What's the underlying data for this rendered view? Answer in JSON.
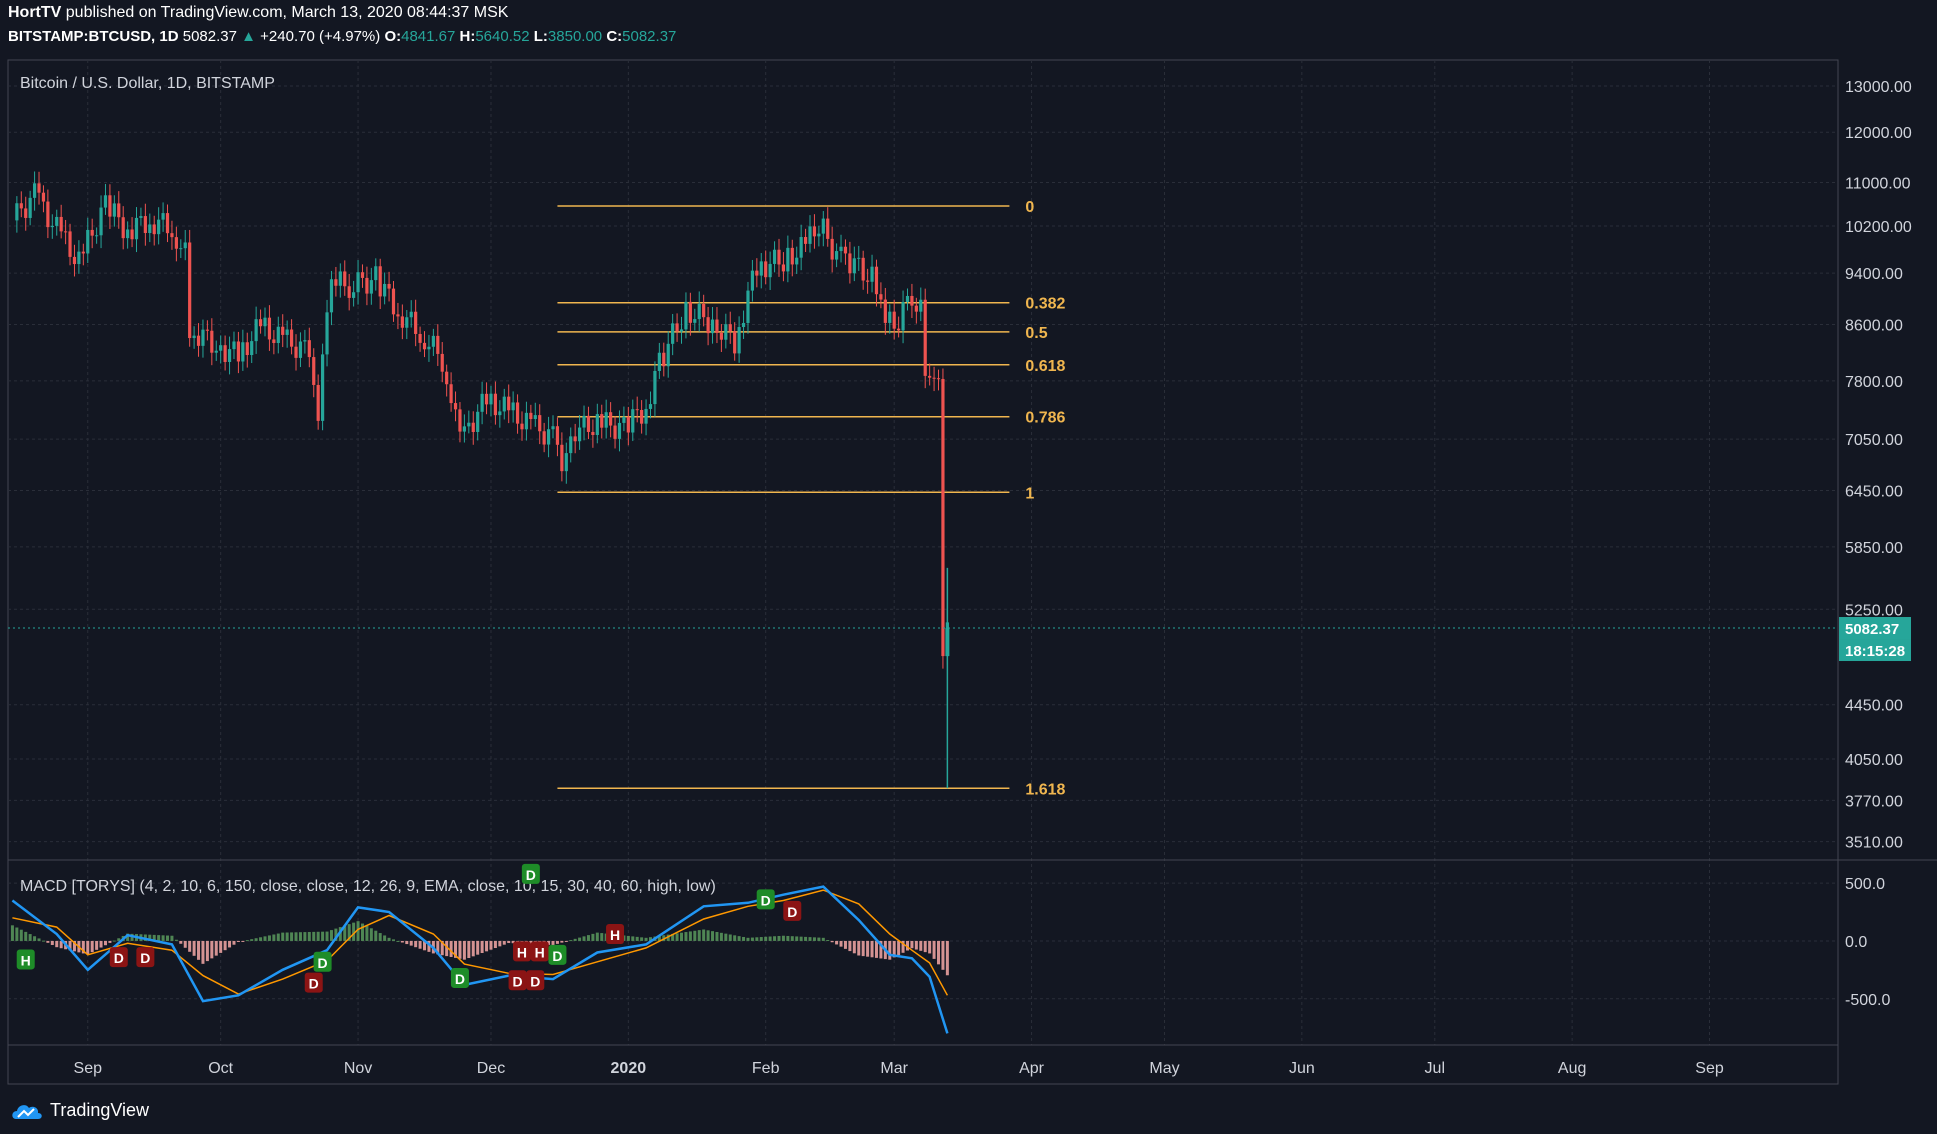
{
  "header": {
    "author": "HortTV",
    "published_text": "published on TradingView.com, March 13, 2020 08:44:37 MSK",
    "symbol": "BITSTAMP:BTCUSD, 1D",
    "last": "5082.37",
    "up_arrow": "▲",
    "change": "+240.70 (+4.97%)",
    "o_label": "O:",
    "o": "4841.67",
    "h_label": "H:",
    "h": "5640.52",
    "l_label": "L:",
    "l": "3850.00",
    "c_label": "C:",
    "c": "5082.37"
  },
  "footer": {
    "brand": "TradingView"
  },
  "colors": {
    "up": "#26a69a",
    "down": "#ef5350",
    "fib": "#f0b64f",
    "macd": "#2196f3",
    "signal": "#ff9800"
  },
  "chart_data": {
    "type": "candlestick",
    "title": "Bitcoin / U.S. Dollar, 1D, BITSTAMP",
    "y_scale": "log",
    "ylim": [
      3400,
      13600
    ],
    "y_ticks": [
      "13000.00",
      "12000.00",
      "11000.00",
      "10200.00",
      "9400.00",
      "8600.00",
      "7800.00",
      "7050.00",
      "6450.00",
      "5850.00",
      "5250.00",
      "4450.00",
      "4050.00",
      "3770.00",
      "3510.00"
    ],
    "x_ticks": [
      "Sep",
      "Oct",
      "Nov",
      "Dec",
      "2020",
      "Feb",
      "Mar",
      "Apr",
      "May",
      "Jun",
      "Jul",
      "Aug",
      "Sep"
    ],
    "last_price_label": "5082.37",
    "countdown_label": "18:15:28",
    "fib_levels": [
      {
        "label": "0",
        "price": 10560
      },
      {
        "label": "0.382",
        "price": 8930
      },
      {
        "label": "0.5",
        "price": 8490
      },
      {
        "label": "0.618",
        "price": 8020
      },
      {
        "label": "0.786",
        "price": 7330
      },
      {
        "label": "1",
        "price": 6430
      },
      {
        "label": "1.618",
        "price": 3850
      }
    ],
    "price_series": [
      {
        "date": "2019-08-15",
        "close": 10300
      },
      {
        "date": "2019-08-20",
        "close": 10760
      },
      {
        "date": "2019-08-25",
        "close": 10140
      },
      {
        "date": "2019-08-30",
        "close": 9580
      },
      {
        "date": "2019-09-05",
        "close": 10580
      },
      {
        "date": "2019-09-10",
        "close": 10120
      },
      {
        "date": "2019-09-15",
        "close": 10310
      },
      {
        "date": "2019-09-20",
        "close": 10170
      },
      {
        "date": "2019-09-23",
        "close": 9700
      },
      {
        "date": "2019-09-24",
        "close": 8530
      },
      {
        "date": "2019-09-30",
        "close": 8300
      },
      {
        "date": "2019-10-05",
        "close": 8150
      },
      {
        "date": "2019-10-10",
        "close": 8580
      },
      {
        "date": "2019-10-15",
        "close": 8370
      },
      {
        "date": "2019-10-20",
        "close": 8230
      },
      {
        "date": "2019-10-23",
        "close": 7440
      },
      {
        "date": "2019-10-25",
        "close": 8660
      },
      {
        "date": "2019-10-26",
        "close": 9250
      },
      {
        "date": "2019-10-30",
        "close": 9200
      },
      {
        "date": "2019-11-05",
        "close": 9310
      },
      {
        "date": "2019-11-10",
        "close": 8810
      },
      {
        "date": "2019-11-15",
        "close": 8480
      },
      {
        "date": "2019-11-20",
        "close": 8100
      },
      {
        "date": "2019-11-22",
        "close": 7620
      },
      {
        "date": "2019-11-25",
        "close": 7130
      },
      {
        "date": "2019-11-30",
        "close": 7550
      },
      {
        "date": "2019-12-05",
        "close": 7400
      },
      {
        "date": "2019-12-10",
        "close": 7220
      },
      {
        "date": "2019-12-15",
        "close": 7080
      },
      {
        "date": "2019-12-17",
        "close": 6620
      },
      {
        "date": "2019-12-20",
        "close": 7150
      },
      {
        "date": "2019-12-25",
        "close": 7250
      },
      {
        "date": "2019-12-31",
        "close": 7190
      },
      {
        "date": "2020-01-05",
        "close": 7450
      },
      {
        "date": "2020-01-08",
        "close": 8050
      },
      {
        "date": "2020-01-14",
        "close": 8820
      },
      {
        "date": "2020-01-20",
        "close": 8630
      },
      {
        "date": "2020-01-25",
        "close": 8350
      },
      {
        "date": "2020-01-30",
        "close": 9500
      },
      {
        "date": "2020-02-05",
        "close": 9620
      },
      {
        "date": "2020-02-10",
        "close": 9850
      },
      {
        "date": "2020-02-13",
        "close": 10250
      },
      {
        "date": "2020-02-17",
        "close": 9700
      },
      {
        "date": "2020-02-20",
        "close": 9600
      },
      {
        "date": "2020-02-25",
        "close": 9320
      },
      {
        "date": "2020-02-27",
        "close": 8790
      },
      {
        "date": "2020-03-01",
        "close": 8520
      },
      {
        "date": "2020-03-05",
        "close": 9070
      },
      {
        "date": "2020-03-07",
        "close": 8900
      },
      {
        "date": "2020-03-08",
        "close": 8040
      },
      {
        "date": "2020-03-10",
        "close": 7920
      },
      {
        "date": "2020-03-11",
        "close": 7900
      },
      {
        "date": "2020-03-12",
        "close": 4840
      },
      {
        "date": "2020-03-13",
        "close": 5082
      }
    ],
    "macd": {
      "label": "MACD [TORYS] (4, 2, 10, 6, 150, close, close, 12, 26, 9, EMA, close, 10, 15, 30, 40, 60, high, low)",
      "y_ticks": [
        "500.0",
        "0.0",
        "-500.0"
      ],
      "ylim": [
        -900,
        700
      ],
      "macd_line": [
        {
          "date": "2019-08-15",
          "value": 350
        },
        {
          "date": "2019-08-25",
          "value": 60
        },
        {
          "date": "2019-09-01",
          "value": -250
        },
        {
          "date": "2019-09-10",
          "value": 50
        },
        {
          "date": "2019-09-20",
          "value": -30
        },
        {
          "date": "2019-09-27",
          "value": -520
        },
        {
          "date": "2019-10-05",
          "value": -470
        },
        {
          "date": "2019-10-15",
          "value": -250
        },
        {
          "date": "2019-10-25",
          "value": -80
        },
        {
          "date": "2019-11-01",
          "value": 290
        },
        {
          "date": "2019-11-08",
          "value": 250
        },
        {
          "date": "2019-11-18",
          "value": -60
        },
        {
          "date": "2019-11-25",
          "value": -380
        },
        {
          "date": "2019-12-05",
          "value": -300
        },
        {
          "date": "2019-12-15",
          "value": -330
        },
        {
          "date": "2019-12-25",
          "value": -100
        },
        {
          "date": "2020-01-05",
          "value": -30
        },
        {
          "date": "2020-01-18",
          "value": 300
        },
        {
          "date": "2020-01-28",
          "value": 330
        },
        {
          "date": "2020-02-05",
          "value": 400
        },
        {
          "date": "2020-02-14",
          "value": 470
        },
        {
          "date": "2020-02-22",
          "value": 180
        },
        {
          "date": "2020-02-29",
          "value": -120
        },
        {
          "date": "2020-03-05",
          "value": -150
        },
        {
          "date": "2020-03-09",
          "value": -310
        },
        {
          "date": "2020-03-13",
          "value": -800
        }
      ],
      "signal_line": [
        {
          "date": "2019-08-15",
          "value": 200
        },
        {
          "date": "2019-08-25",
          "value": 120
        },
        {
          "date": "2019-09-01",
          "value": -120
        },
        {
          "date": "2019-09-10",
          "value": -20
        },
        {
          "date": "2019-09-20",
          "value": -80
        },
        {
          "date": "2019-09-27",
          "value": -300
        },
        {
          "date": "2019-10-05",
          "value": -460
        },
        {
          "date": "2019-10-15",
          "value": -330
        },
        {
          "date": "2019-10-25",
          "value": -170
        },
        {
          "date": "2019-11-01",
          "value": 100
        },
        {
          "date": "2019-11-08",
          "value": 220
        },
        {
          "date": "2019-11-18",
          "value": 60
        },
        {
          "date": "2019-11-25",
          "value": -200
        },
        {
          "date": "2019-12-05",
          "value": -280
        },
        {
          "date": "2019-12-15",
          "value": -290
        },
        {
          "date": "2019-12-25",
          "value": -180
        },
        {
          "date": "2020-01-05",
          "value": -60
        },
        {
          "date": "2020-01-18",
          "value": 190
        },
        {
          "date": "2020-01-28",
          "value": 300
        },
        {
          "date": "2020-02-05",
          "value": 350
        },
        {
          "date": "2020-02-14",
          "value": 440
        },
        {
          "date": "2020-02-22",
          "value": 320
        },
        {
          "date": "2020-02-29",
          "value": 60
        },
        {
          "date": "2020-03-05",
          "value": -80
        },
        {
          "date": "2020-03-09",
          "value": -190
        },
        {
          "date": "2020-03-13",
          "value": -470
        }
      ],
      "signals": [
        {
          "label": "H",
          "date": "2019-08-18",
          "value": -160,
          "type": "buy"
        },
        {
          "label": "D",
          "date": "2019-09-08",
          "value": -140,
          "type": "sell"
        },
        {
          "label": "D",
          "date": "2019-09-14",
          "value": -140,
          "type": "sell"
        },
        {
          "label": "D",
          "date": "2019-10-22",
          "value": -360,
          "type": "sell"
        },
        {
          "label": "D",
          "date": "2019-10-24",
          "value": -180,
          "type": "buy"
        },
        {
          "label": "D",
          "date": "2019-11-24",
          "value": -320,
          "type": "buy"
        },
        {
          "label": "D",
          "date": "2019-12-07",
          "value": -340,
          "type": "sell"
        },
        {
          "label": "D",
          "date": "2019-12-11",
          "value": -340,
          "type": "sell"
        },
        {
          "label": "H",
          "date": "2019-12-08",
          "value": -90,
          "type": "sell"
        },
        {
          "label": "H",
          "date": "2019-12-12",
          "value": -90,
          "type": "sell"
        },
        {
          "label": "D",
          "date": "2019-12-16",
          "value": -120,
          "type": "buy"
        },
        {
          "label": "D",
          "date": "2019-12-10",
          "value": 580,
          "type": "buy"
        },
        {
          "label": "H",
          "date": "2019-12-29",
          "value": 60,
          "type": "sell"
        },
        {
          "label": "D",
          "date": "2020-02-01",
          "value": 360,
          "type": "buy"
        },
        {
          "label": "D",
          "date": "2020-02-07",
          "value": 260,
          "type": "sell"
        }
      ]
    }
  }
}
